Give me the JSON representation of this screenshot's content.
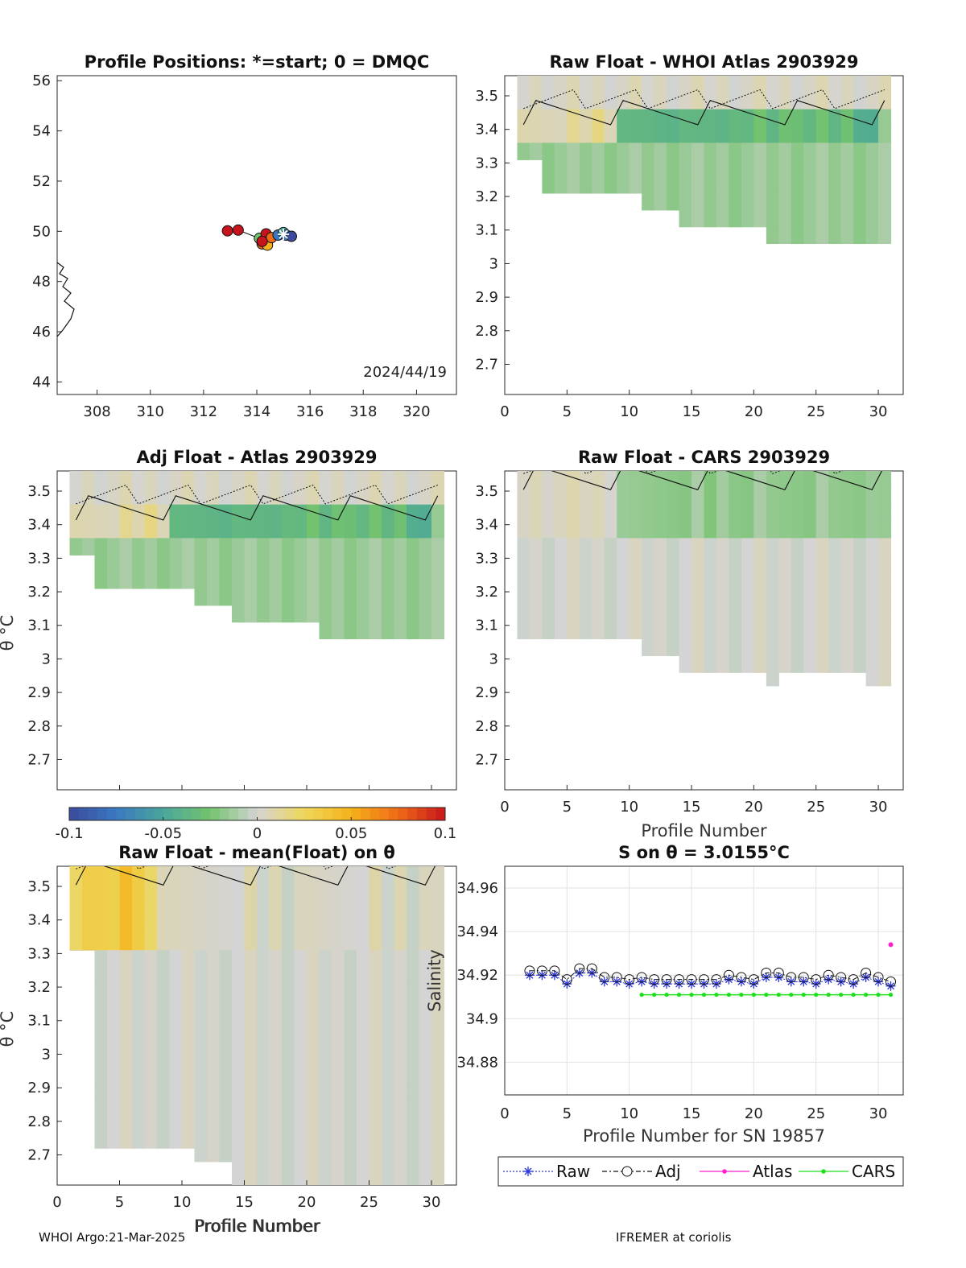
{
  "footer": {
    "left": "WHOI Argo:21-Mar-2025",
    "right": "IFREMER at coriolis"
  },
  "ylabel_theta": "θ °C",
  "xlabel_profile": "Profile Number",
  "colorbar": {
    "ticks": [
      "-0.1",
      "-0.05",
      "0",
      "0.05",
      "0.1"
    ],
    "range": [
      -0.1,
      0.1
    ],
    "colormap": [
      "#3b4a9a",
      "#3a78c2",
      "#4aa69a",
      "#74c36e",
      "#d4d4d4",
      "#eed75a",
      "#f5b21a",
      "#ee6a16",
      "#c8141c"
    ]
  },
  "chart_data": [
    {
      "id": "positions",
      "type": "scatter",
      "title": "Profile Positions: *=start; 0 = DMQC",
      "xlim": [
        306.5,
        321.5
      ],
      "ylim": [
        43.5,
        56.2
      ],
      "xticks": [
        "308",
        "310",
        "312",
        "314",
        "316",
        "318",
        "320"
      ],
      "yticks": [
        "44",
        "46",
        "48",
        "50",
        "52",
        "54",
        "56"
      ],
      "date_label": "2024/44/19",
      "points": [
        {
          "lon": 312.9,
          "lat": 50.02,
          "color": "#c8141c"
        },
        {
          "lon": 313.3,
          "lat": 50.05,
          "color": "#c8141c"
        },
        {
          "lon": 314.1,
          "lat": 49.72,
          "color": "#74c36e"
        },
        {
          "lon": 314.2,
          "lat": 49.5,
          "color": "#ee6a16"
        },
        {
          "lon": 314.4,
          "lat": 49.45,
          "color": "#f5b21a"
        },
        {
          "lon": 314.35,
          "lat": 49.9,
          "color": "#c8141c"
        },
        {
          "lon": 314.55,
          "lat": 49.75,
          "color": "#ee6a16"
        },
        {
          "lon": 314.8,
          "lat": 49.85,
          "color": "#3a78c2"
        },
        {
          "lon": 315.0,
          "lat": 49.95,
          "color": "#4aa69a"
        },
        {
          "lon": 315.1,
          "lat": 49.85,
          "color": "#3a78c2"
        },
        {
          "lon": 315.3,
          "lat": 49.8,
          "color": "#3b4a9a"
        },
        {
          "lon": 314.2,
          "lat": 49.6,
          "color": "#c8141c"
        }
      ],
      "start": {
        "lon": 315.0,
        "lat": 49.88
      }
    },
    {
      "id": "raw-atlas",
      "type": "heatmap",
      "title": "Raw Float - WHOI Atlas  2903929",
      "xlim": [
        0,
        32
      ],
      "ylim": [
        2.61,
        3.56
      ],
      "xticks": [
        "0",
        "5",
        "10",
        "15",
        "20",
        "25",
        "30"
      ],
      "yticks": [
        "2.7",
        "2.8",
        "2.9",
        "3",
        "3.1",
        "3.2",
        "3.3",
        "3.4",
        "3.5"
      ],
      "xlabel": "",
      "bottom_edges": [
        3.31,
        3.31,
        3.21,
        3.21,
        3.21,
        3.21,
        3.21,
        3.21,
        3.21,
        3.21,
        3.16,
        3.16,
        3.16,
        3.11,
        3.11,
        3.11,
        3.11,
        3.11,
        3.11,
        3.11,
        3.06,
        3.06,
        3.06,
        3.06,
        3.06,
        3.06,
        3.06,
        3.06,
        3.06,
        3.06
      ],
      "band_top": 3.47,
      "band_bottom": 3.37,
      "band_values": [
        0.01,
        0.005,
        0.01,
        0.005,
        0.01,
        0.01,
        0.015,
        0.01,
        -0.035,
        -0.04,
        -0.035,
        -0.04,
        -0.035,
        -0.035,
        -0.04,
        -0.035,
        -0.04,
        -0.03,
        -0.035,
        -0.03,
        -0.035,
        -0.03,
        -0.025,
        -0.035,
        -0.03,
        -0.035,
        -0.03,
        -0.04,
        -0.045,
        -0.02
      ],
      "lower_value": -0.015,
      "top_value": 0.003
    },
    {
      "id": "adj-atlas",
      "type": "heatmap",
      "title": "Adj Float - Atlas  2903929",
      "xlim": [
        0,
        32
      ],
      "ylim": [
        2.61,
        3.56
      ],
      "xticks": [],
      "yticks": [
        "2.7",
        "2.8",
        "2.9",
        "3",
        "3.1",
        "3.2",
        "3.3",
        "3.4",
        "3.5"
      ],
      "xlabel": "",
      "bottom_edges": [
        3.31,
        3.31,
        3.21,
        3.21,
        3.21,
        3.21,
        3.21,
        3.21,
        3.21,
        3.21,
        3.16,
        3.16,
        3.16,
        3.11,
        3.11,
        3.11,
        3.11,
        3.11,
        3.11,
        3.11,
        3.06,
        3.06,
        3.06,
        3.06,
        3.06,
        3.06,
        3.06,
        3.06,
        3.06,
        3.06
      ],
      "band_top": 3.47,
      "band_bottom": 3.37,
      "band_values": [
        0.01,
        0.005,
        0.01,
        0.005,
        0.01,
        0.01,
        0.015,
        0.01,
        -0.035,
        -0.04,
        -0.035,
        -0.04,
        -0.035,
        -0.035,
        -0.04,
        -0.035,
        -0.04,
        -0.03,
        -0.035,
        -0.03,
        -0.035,
        -0.03,
        -0.025,
        -0.035,
        -0.03,
        -0.035,
        -0.03,
        -0.04,
        -0.045,
        -0.02
      ],
      "lower_value": -0.015,
      "top_value": 0.003
    },
    {
      "id": "raw-cars",
      "type": "heatmap",
      "title": "Raw Float - CARS  2903929",
      "xlim": [
        0,
        32
      ],
      "ylim": [
        2.61,
        3.56
      ],
      "xticks": [
        "0",
        "5",
        "10",
        "15",
        "20",
        "25",
        "30"
      ],
      "yticks": [
        "2.7",
        "2.8",
        "2.9",
        "3",
        "3.1",
        "3.2",
        "3.3",
        "3.4",
        "3.5"
      ],
      "xlabel": "Profile Number",
      "bottom_edges": [
        3.06,
        3.06,
        3.06,
        3.06,
        3.06,
        3.06,
        3.06,
        3.06,
        3.06,
        3.06,
        3.01,
        3.01,
        3.01,
        2.96,
        2.96,
        2.96,
        2.96,
        2.96,
        2.96,
        2.96,
        2.92,
        2.96,
        2.96,
        2.96,
        2.96,
        2.96,
        2.96,
        2.96,
        2.92,
        2.92
      ],
      "band_top": 3.56,
      "band_bottom": 3.39,
      "band_values": [
        0.005,
        0.004,
        0.006,
        0.005,
        0.004,
        0.006,
        0.004,
        0.005,
        -0.015,
        -0.02,
        -0.015,
        -0.02,
        -0.015,
        -0.02,
        -0.015,
        -0.02,
        -0.015,
        -0.015,
        -0.02,
        -0.015,
        -0.015,
        -0.02,
        -0.015,
        -0.02,
        -0.015,
        -0.015,
        -0.02,
        -0.015,
        -0.015,
        -0.02
      ],
      "lower_value": 0.0,
      "top_value": 0.0
    },
    {
      "id": "raw-mean",
      "type": "heatmap",
      "title": "Raw Float - mean(Float) on θ",
      "xlim": [
        0,
        32
      ],
      "ylim": [
        2.61,
        3.56
      ],
      "xticks": [
        "0",
        "5",
        "10",
        "15",
        "20",
        "25",
        "30"
      ],
      "yticks": [
        "2.7",
        "2.8",
        "2.9",
        "3",
        "3.1",
        "3.2",
        "3.3",
        "3.4",
        "3.5"
      ],
      "xlabel": "Profile Number",
      "bottom_edges": [
        3.31,
        3.31,
        2.72,
        2.72,
        2.72,
        2.72,
        2.72,
        2.72,
        2.72,
        2.72,
        2.68,
        2.68,
        2.68,
        2.61,
        2.61,
        2.61,
        2.61,
        2.61,
        2.61,
        2.61,
        2.61,
        2.61,
        2.61,
        2.61,
        2.61,
        2.61,
        2.61,
        2.61,
        2.61,
        2.61
      ],
      "band_top": 3.56,
      "band_bottom": 3.33,
      "band_values": [
        0.025,
        0.03,
        0.035,
        0.03,
        0.04,
        0.035,
        0.02,
        0.01,
        0.005,
        0.0,
        0.005,
        0.0,
        0.005,
        0.0,
        0.005,
        0.0,
        0.005,
        0.0,
        0.005,
        0.0,
        0.005,
        0.0,
        0.005,
        0.0,
        0.005,
        0.0,
        0.005,
        0.0,
        0.005,
        0.0
      ],
      "lower_value": 0.0,
      "top_value": 0.02
    },
    {
      "id": "s-on-theta",
      "type": "line",
      "title": "S on θ = 3.0155°C",
      "xlabel": "Profile Number for SN 19857",
      "ylabel": "Salinity",
      "xlim": [
        0,
        32
      ],
      "ylim": [
        34.865,
        34.97
      ],
      "xticks": [
        "0",
        "5",
        "10",
        "15",
        "20",
        "25",
        "30"
      ],
      "yticks": [
        "34.88",
        "34.9",
        "34.92",
        "34.94",
        "34.96"
      ],
      "x": [
        2,
        3,
        4,
        5,
        6,
        7,
        8,
        9,
        10,
        11,
        12,
        13,
        14,
        15,
        16,
        17,
        18,
        19,
        20,
        21,
        22,
        23,
        24,
        25,
        26,
        27,
        28,
        29,
        30,
        31
      ],
      "series": [
        {
          "name": "Raw",
          "color": "#2a35d8",
          "values": [
            34.92,
            34.92,
            34.92,
            34.916,
            34.921,
            34.921,
            34.917,
            34.917,
            34.916,
            34.917,
            34.916,
            34.916,
            34.916,
            34.916,
            34.916,
            34.916,
            34.918,
            34.917,
            34.916,
            34.919,
            34.919,
            34.917,
            34.917,
            34.916,
            34.918,
            34.917,
            34.916,
            34.919,
            34.917,
            34.915
          ]
        },
        {
          "name": "Adj",
          "color": "#111111",
          "values": [
            34.922,
            34.922,
            34.922,
            34.918,
            34.923,
            34.923,
            34.919,
            34.919,
            34.918,
            34.919,
            34.918,
            34.918,
            34.918,
            34.918,
            34.918,
            34.918,
            34.92,
            34.919,
            34.918,
            34.921,
            34.921,
            34.919,
            34.919,
            34.918,
            34.92,
            34.919,
            34.918,
            34.921,
            34.919,
            34.917
          ]
        },
        {
          "name": "Atlas",
          "color": "#ff1fd0",
          "x": [
            31
          ],
          "values": [
            34.934
          ]
        },
        {
          "name": "CARS",
          "color": "#1ae01a",
          "x": [
            11,
            12,
            13,
            14,
            15,
            16,
            17,
            18,
            19,
            20,
            21,
            22,
            23,
            24,
            25,
            26,
            27,
            28,
            29,
            30,
            31
          ],
          "values": [
            34.911,
            34.911,
            34.911,
            34.911,
            34.911,
            34.911,
            34.911,
            34.911,
            34.911,
            34.911,
            34.911,
            34.911,
            34.911,
            34.911,
            34.911,
            34.911,
            34.911,
            34.911,
            34.911,
            34.911,
            34.911
          ]
        }
      ],
      "legend": [
        "Raw",
        "Adj",
        "Atlas",
        "CARS"
      ]
    }
  ]
}
